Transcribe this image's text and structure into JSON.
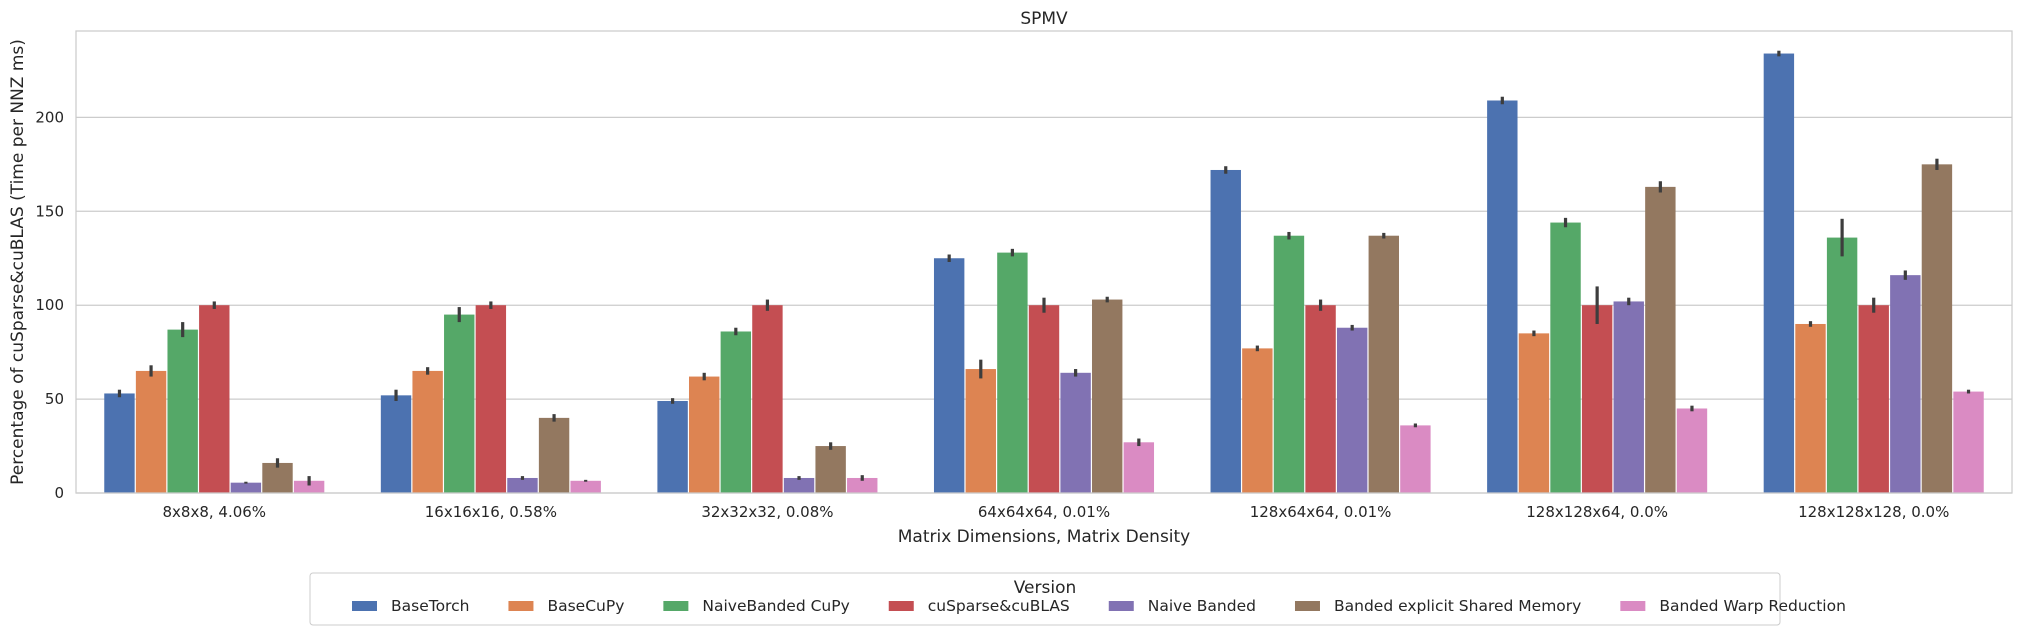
{
  "chart_data": {
    "type": "bar",
    "title": "SPMV",
    "xlabel": "Matrix Dimensions, Matrix Density",
    "ylabel": "Percentage of cuSparse&cuBLAS (Time per NNZ ms)",
    "ylim": [
      0,
      246
    ],
    "yticks": [
      0,
      50,
      100,
      150,
      200
    ],
    "grid": true,
    "legend_title": "Version",
    "legend_position": "bottom",
    "categories": [
      "8x8x8, 4.06%",
      "16x16x16, 0.58%",
      "32x32x32, 0.08%",
      "64x64x64, 0.01%",
      "128x64x64, 0.01%",
      "128x128x64, 0.0%",
      "128x128x128, 0.0%"
    ],
    "series": [
      {
        "name": "BaseTorch",
        "color": "#4c72b0",
        "values": [
          53,
          52,
          49,
          125,
          172,
          209,
          234
        ],
        "err": [
          2,
          3,
          1.5,
          2,
          2,
          2,
          1.5
        ]
      },
      {
        "name": "BaseCuPy",
        "color": "#dd8452",
        "values": [
          65,
          65,
          62,
          66,
          77,
          85,
          90
        ],
        "err": [
          3,
          2,
          2,
          5,
          1.5,
          1.5,
          1.5
        ]
      },
      {
        "name": "NaiveBanded CuPy",
        "color": "#55a868",
        "values": [
          87,
          95,
          86,
          128,
          137,
          144,
          136
        ],
        "err": [
          4,
          4,
          2,
          2,
          2,
          2.5,
          10
        ]
      },
      {
        "name": "cuSparse&cuBLAS",
        "color": "#c44e52",
        "values": [
          100,
          100,
          100,
          100,
          100,
          100,
          100
        ],
        "err": [
          2,
          2,
          3,
          4,
          3,
          10,
          4
        ]
      },
      {
        "name": "Naive Banded",
        "color": "#8172b3",
        "values": [
          5.5,
          8,
          8,
          64,
          88,
          102,
          116
        ],
        "err": [
          0.5,
          1,
          1,
          2,
          1.5,
          2,
          2.5
        ]
      },
      {
        "name": "Banded explicit Shared Memory",
        "color": "#937860",
        "values": [
          16,
          40,
          25,
          103,
          137,
          163,
          175
        ],
        "err": [
          2.5,
          2,
          2,
          1.5,
          1.5,
          3,
          3
        ]
      },
      {
        "name": "Banded Warp Reduction",
        "color": "#da8bc3",
        "values": [
          6.5,
          6.5,
          8,
          27,
          36,
          45,
          54
        ],
        "err": [
          2.5,
          0.5,
          1.5,
          2,
          1,
          1.5,
          1
        ]
      }
    ]
  }
}
